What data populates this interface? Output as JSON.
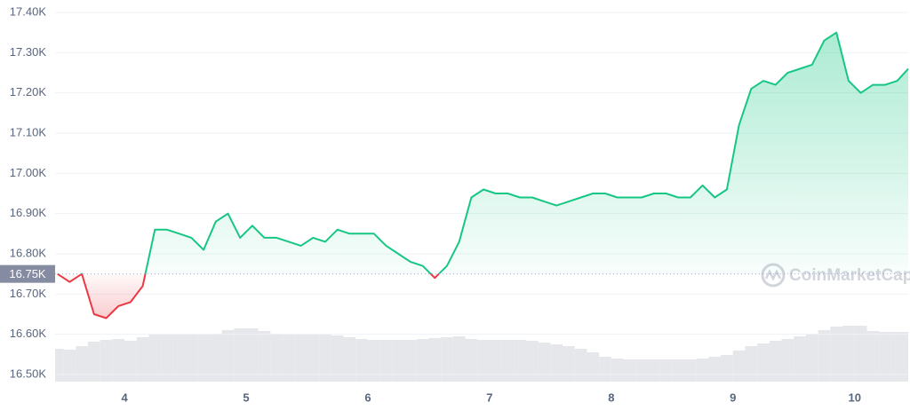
{
  "chart_data": {
    "type": "line",
    "x": [
      3.45,
      3.55,
      3.65,
      3.75,
      3.85,
      3.95,
      4.05,
      4.15,
      4.25,
      4.35,
      4.45,
      4.55,
      4.65,
      4.75,
      4.85,
      4.95,
      5.05,
      5.15,
      5.25,
      5.35,
      5.45,
      5.55,
      5.65,
      5.75,
      5.85,
      5.95,
      6.05,
      6.15,
      6.25,
      6.35,
      6.45,
      6.55,
      6.65,
      6.75,
      6.85,
      6.95,
      7.05,
      7.15,
      7.25,
      7.35,
      7.45,
      7.55,
      7.65,
      7.75,
      7.85,
      7.95,
      8.05,
      8.15,
      8.25,
      8.35,
      8.45,
      8.55,
      8.65,
      8.75,
      8.85,
      8.95,
      9.05,
      9.15,
      9.25,
      9.35,
      9.45,
      9.55,
      9.65,
      9.75,
      9.85,
      9.95,
      10.05,
      10.15,
      10.25,
      10.35,
      10.44
    ],
    "values": [
      16.75,
      16.73,
      16.75,
      16.65,
      16.64,
      16.67,
      16.68,
      16.72,
      16.86,
      16.86,
      16.85,
      16.84,
      16.81,
      16.88,
      16.9,
      16.84,
      16.87,
      16.84,
      16.84,
      16.83,
      16.82,
      16.84,
      16.83,
      16.86,
      16.85,
      16.85,
      16.85,
      16.82,
      16.8,
      16.78,
      16.77,
      16.74,
      16.77,
      16.83,
      16.94,
      16.96,
      16.95,
      16.95,
      16.94,
      16.94,
      16.93,
      16.92,
      16.93,
      16.94,
      16.95,
      16.95,
      16.94,
      16.94,
      16.94,
      16.95,
      16.95,
      16.94,
      16.94,
      16.97,
      16.94,
      16.96,
      17.12,
      17.21,
      17.23,
      17.22,
      17.25,
      17.26,
      17.27,
      17.33,
      17.35,
      17.23,
      17.2,
      17.22,
      17.22,
      17.23,
      17.26
    ],
    "color_up": "#16c784",
    "color_down": "#ea3943",
    "baseline": {
      "value": 16.75,
      "label": "16.75K"
    },
    "volume": {
      "color": "#e6e7eb",
      "values": [
        37,
        36,
        40,
        45,
        47,
        48,
        46,
        50,
        53,
        53,
        53,
        53,
        53,
        54,
        58,
        60,
        60,
        57,
        54,
        53,
        53,
        53,
        53,
        52,
        50,
        48,
        47,
        47,
        47,
        47,
        48,
        49,
        50,
        51,
        48,
        47,
        47,
        47,
        47,
        46,
        44,
        42,
        40,
        37,
        33,
        28,
        26,
        25,
        25,
        25,
        25,
        25,
        25,
        26,
        28,
        30,
        35,
        40,
        43,
        46,
        48,
        51,
        54,
        58,
        62,
        63,
        63,
        57,
        56,
        56,
        56
      ]
    },
    "y2lim": [
      0,
      100
    ],
    "xlim": [
      3.43,
      10.44
    ],
    "xticks": [
      4,
      5,
      6,
      7,
      8,
      9,
      10
    ],
    "ylim": [
      16.5,
      17.4
    ],
    "yticks": [
      {
        "value": 16.5,
        "label": "16.50K"
      },
      {
        "value": 16.6,
        "label": "16.60K"
      },
      {
        "value": 16.7,
        "label": "16.70K"
      },
      {
        "value": 16.8,
        "label": "16.80K"
      },
      {
        "value": 16.9,
        "label": "16.90K"
      },
      {
        "value": 17.0,
        "label": "17.00K"
      },
      {
        "value": 17.1,
        "label": "17.10K"
      },
      {
        "value": 17.2,
        "label": "17.20K"
      },
      {
        "value": 17.3,
        "label": "17.30K"
      },
      {
        "value": 17.4,
        "label": "17.40K"
      }
    ],
    "grid": true,
    "watermark": "CoinMarketCap"
  }
}
